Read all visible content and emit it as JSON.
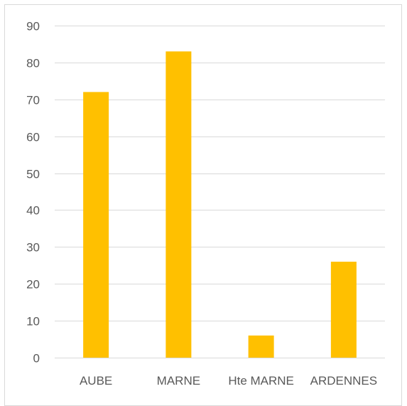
{
  "chart_data": {
    "type": "bar",
    "categories": [
      "AUBE",
      "MARNE",
      "Hte MARNE",
      "ARDENNES"
    ],
    "values": [
      72,
      83,
      6,
      26
    ],
    "title": "",
    "xlabel": "",
    "ylabel": "",
    "ylim": [
      0,
      90
    ],
    "yticks": [
      0,
      10,
      20,
      30,
      40,
      50,
      60,
      70,
      80,
      90
    ],
    "grid": true,
    "legend": "none",
    "bar_color": "#FFC000",
    "grid_color": "#D9D9D9",
    "text_color": "#595959"
  }
}
